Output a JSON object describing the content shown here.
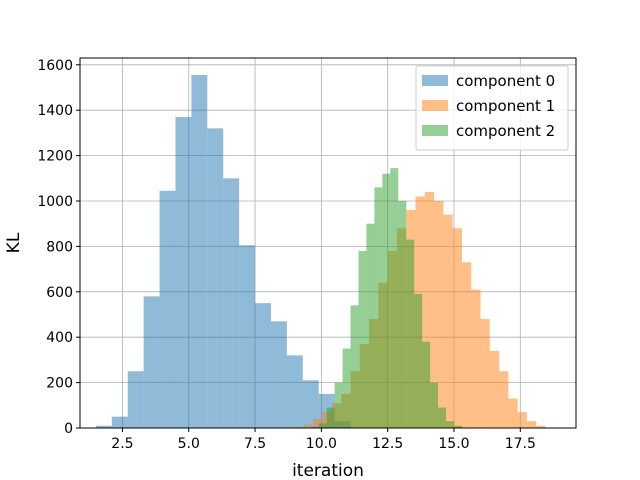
{
  "chart_data": {
    "type": "histogram",
    "xlabel": "iteration",
    "ylabel": "KL",
    "xlim": [
      0.9,
      19.6
    ],
    "ylim": [
      0,
      1630
    ],
    "xticks": [
      2.5,
      5.0,
      7.5,
      10.0,
      12.5,
      15.0,
      17.5
    ],
    "xtick_labels": [
      "2.5",
      "5.0",
      "7.5",
      "10.0",
      "12.5",
      "15.0",
      "17.5"
    ],
    "yticks": [
      0,
      200,
      400,
      600,
      800,
      1000,
      1200,
      1400,
      1600
    ],
    "ytick_labels": [
      "0",
      "200",
      "400",
      "600",
      "800",
      "1000",
      "1200",
      "1400",
      "1600"
    ],
    "grid": true,
    "legend_position": "top-right",
    "alpha": 0.5,
    "series": [
      {
        "name": "component 0",
        "color": "#1f77b4",
        "bin_edges": [
          1.5,
          2.1,
          2.7,
          3.3,
          3.9,
          4.5,
          5.1,
          5.7,
          6.3,
          6.9,
          7.5,
          8.1,
          8.7,
          9.3,
          9.9,
          10.5,
          11.1
        ],
        "counts": [
          10,
          50,
          250,
          580,
          1045,
          1370,
          1555,
          1320,
          1100,
          805,
          550,
          470,
          320,
          210,
          150,
          30
        ]
      },
      {
        "name": "component 1",
        "color": "#ff7f0e",
        "bin_edges": [
          9.0,
          9.35,
          9.7,
          10.05,
          10.4,
          10.75,
          11.1,
          11.45,
          11.8,
          12.15,
          12.5,
          12.85,
          13.2,
          13.55,
          13.9,
          14.25,
          14.6,
          14.95,
          15.3,
          15.65,
          16.0,
          16.35,
          16.7,
          17.05,
          17.4,
          17.75,
          18.1,
          18.45
        ],
        "counts": [
          5,
          15,
          40,
          70,
          110,
          150,
          250,
          370,
          480,
          640,
          780,
          880,
          960,
          1020,
          1040,
          1000,
          940,
          880,
          730,
          610,
          480,
          340,
          250,
          130,
          70,
          30,
          10
        ]
      },
      {
        "name": "component 2",
        "color": "#2ca02c",
        "bin_edges": [
          9.6,
          9.9,
          10.2,
          10.5,
          10.8,
          11.1,
          11.4,
          11.7,
          12.0,
          12.3,
          12.6,
          12.9,
          13.2,
          13.5,
          13.8,
          14.1,
          14.4,
          14.7,
          15.0,
          15.3
        ],
        "counts": [
          5,
          20,
          90,
          200,
          350,
          540,
          780,
          900,
          1060,
          1120,
          1145,
          1000,
          830,
          590,
          380,
          200,
          90,
          30,
          10
        ]
      }
    ]
  }
}
